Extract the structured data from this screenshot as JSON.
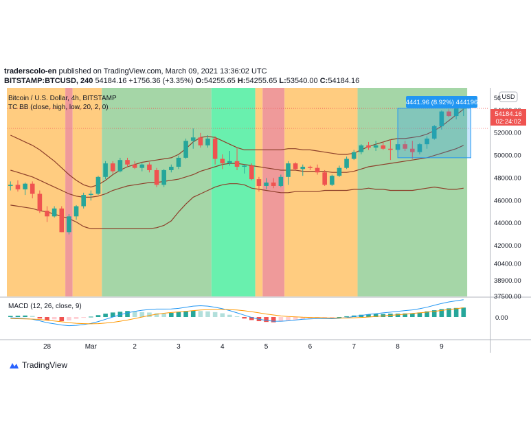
{
  "header": {
    "author": "traderscolo-en",
    "published_text": "published on TradingView.com, March 09, 2021 13:36:02 UTC",
    "symbol_line": "BITSTAMP:BTCUSD, 240",
    "last": "54184.16",
    "change": "+1756.36 (+3.35%)",
    "o_label": "O:",
    "o": "54255.65",
    "h_label": "H:",
    "h": "54255.65",
    "l_label": "L:",
    "l": "53540.00",
    "c_label": "C:",
    "c": "54184.16"
  },
  "legend": {
    "title": "Bitcoin / U.S. Dollar, 4h, BITSTAMP",
    "indicator": "TC BB (close, high, low, 20, 2, 0)",
    "macd": "MACD (12, 26, close, 9)"
  },
  "price_axis": {
    "currency": "USD",
    "ticks": [
      "54000.00",
      "52000.00",
      "50000.00",
      "48000.00",
      "46000.00",
      "44000.00",
      "42000.00",
      "40400.00",
      "38900.00",
      "37500.00"
    ],
    "top_partial": "56",
    "last_price": "54184.16",
    "countdown": "02:24:02",
    "macd_tick": "0.00"
  },
  "measure_label": "4441.96 (8.92%) 444196",
  "time_axis": [
    "28",
    "Mar",
    "2",
    "3",
    "4",
    "5",
    "6",
    "7",
    "8",
    "9"
  ],
  "branding": "TradingView",
  "colors": {
    "up": "#26a69a",
    "down": "#ef5350",
    "orange_zone": "#ffcc80",
    "green_zone": "#a5d6a7",
    "cyan_zone": "#69f0ae",
    "red_zone": "#ef9a9a",
    "bands": "#8d3f2a",
    "macd": "#2196f3",
    "signal": "#ff9800",
    "label_blue": "#2196f3",
    "label_red": "#ef5350"
  },
  "chart_data": {
    "type": "candlestick",
    "title": "Bitcoin / U.S. Dollar, 4h, BITSTAMP",
    "candles": [
      {
        "o": 47300,
        "h": 47700,
        "l": 46900,
        "c": 47400
      },
      {
        "o": 47400,
        "h": 47800,
        "l": 46800,
        "c": 47000
      },
      {
        "o": 47000,
        "h": 47600,
        "l": 46500,
        "c": 47500
      },
      {
        "o": 47500,
        "h": 47700,
        "l": 46200,
        "c": 46600
      },
      {
        "o": 46600,
        "h": 46900,
        "l": 44900,
        "c": 45100
      },
      {
        "o": 45100,
        "h": 45500,
        "l": 44100,
        "c": 44600
      },
      {
        "o": 44600,
        "h": 45500,
        "l": 44500,
        "c": 45300
      },
      {
        "o": 45300,
        "h": 45500,
        "l": 43200,
        "c": 43200
      },
      {
        "o": 43200,
        "h": 44800,
        "l": 43000,
        "c": 44600
      },
      {
        "o": 44600,
        "h": 45600,
        "l": 44300,
        "c": 45500
      },
      {
        "o": 45500,
        "h": 46700,
        "l": 45300,
        "c": 46500
      },
      {
        "o": 46500,
        "h": 46900,
        "l": 46000,
        "c": 46600
      },
      {
        "o": 46600,
        "h": 48200,
        "l": 46500,
        "c": 48100
      },
      {
        "o": 48100,
        "h": 49500,
        "l": 47900,
        "c": 49300
      },
      {
        "o": 49300,
        "h": 49500,
        "l": 48400,
        "c": 48600
      },
      {
        "o": 48600,
        "h": 49800,
        "l": 48500,
        "c": 49600
      },
      {
        "o": 49600,
        "h": 49800,
        "l": 49000,
        "c": 49200
      },
      {
        "o": 49200,
        "h": 49500,
        "l": 48800,
        "c": 48900
      },
      {
        "o": 48900,
        "h": 49300,
        "l": 48600,
        "c": 49200
      },
      {
        "o": 49200,
        "h": 49400,
        "l": 48500,
        "c": 48700
      },
      {
        "o": 48700,
        "h": 48900,
        "l": 47200,
        "c": 47400
      },
      {
        "o": 47400,
        "h": 48800,
        "l": 47200,
        "c": 48700
      },
      {
        "o": 48700,
        "h": 49200,
        "l": 48500,
        "c": 49000
      },
      {
        "o": 49000,
        "h": 50000,
        "l": 48800,
        "c": 49800
      },
      {
        "o": 49800,
        "h": 51500,
        "l": 49700,
        "c": 51300
      },
      {
        "o": 51300,
        "h": 52400,
        "l": 50600,
        "c": 51600
      },
      {
        "o": 51600,
        "h": 52000,
        "l": 50700,
        "c": 50900
      },
      {
        "o": 50900,
        "h": 51800,
        "l": 50700,
        "c": 51500
      },
      {
        "o": 51500,
        "h": 51700,
        "l": 49200,
        "c": 49700
      },
      {
        "o": 49700,
        "h": 50100,
        "l": 48800,
        "c": 49300
      },
      {
        "o": 49300,
        "h": 50400,
        "l": 49100,
        "c": 49500
      },
      {
        "o": 49500,
        "h": 50700,
        "l": 48700,
        "c": 49000
      },
      {
        "o": 49000,
        "h": 49200,
        "l": 48400,
        "c": 49100
      },
      {
        "o": 49100,
        "h": 49300,
        "l": 47800,
        "c": 47900
      },
      {
        "o": 47900,
        "h": 48100,
        "l": 46800,
        "c": 47300
      },
      {
        "o": 47300,
        "h": 48000,
        "l": 47000,
        "c": 47600
      },
      {
        "o": 47600,
        "h": 48000,
        "l": 47100,
        "c": 47300
      },
      {
        "o": 47300,
        "h": 48300,
        "l": 47200,
        "c": 48100
      },
      {
        "o": 48100,
        "h": 49500,
        "l": 47400,
        "c": 49300
      },
      {
        "o": 49300,
        "h": 49400,
        "l": 48700,
        "c": 48800
      },
      {
        "o": 48800,
        "h": 49200,
        "l": 48200,
        "c": 49000
      },
      {
        "o": 49000,
        "h": 49100,
        "l": 48700,
        "c": 48900
      },
      {
        "o": 48900,
        "h": 49200,
        "l": 48300,
        "c": 48500
      },
      {
        "o": 48500,
        "h": 48700,
        "l": 47300,
        "c": 47400
      },
      {
        "o": 47400,
        "h": 48300,
        "l": 47300,
        "c": 48200
      },
      {
        "o": 48200,
        "h": 49100,
        "l": 48100,
        "c": 48900
      },
      {
        "o": 48900,
        "h": 49900,
        "l": 48800,
        "c": 49700
      },
      {
        "o": 49700,
        "h": 50500,
        "l": 49600,
        "c": 50300
      },
      {
        "o": 50300,
        "h": 51000,
        "l": 50100,
        "c": 50900
      },
      {
        "o": 50900,
        "h": 51200,
        "l": 50500,
        "c": 50700
      },
      {
        "o": 50700,
        "h": 51300,
        "l": 50400,
        "c": 50900
      },
      {
        "o": 50900,
        "h": 51200,
        "l": 50500,
        "c": 50600
      },
      {
        "o": 50600,
        "h": 51400,
        "l": 49600,
        "c": 50500
      },
      {
        "o": 50500,
        "h": 51200,
        "l": 50300,
        "c": 51000
      },
      {
        "o": 51000,
        "h": 51300,
        "l": 50400,
        "c": 50600
      },
      {
        "o": 50600,
        "h": 51300,
        "l": 49700,
        "c": 50300
      },
      {
        "o": 50300,
        "h": 51100,
        "l": 50100,
        "c": 51000
      },
      {
        "o": 51000,
        "h": 51700,
        "l": 50600,
        "c": 51500
      },
      {
        "o": 51500,
        "h": 52700,
        "l": 51400,
        "c": 52600
      },
      {
        "o": 52600,
        "h": 54000,
        "l": 52300,
        "c": 53900
      },
      {
        "o": 53900,
        "h": 54100,
        "l": 53400,
        "c": 53500
      },
      {
        "o": 53500,
        "h": 54300,
        "l": 53200,
        "c": 54200
      },
      {
        "o": 54200,
        "h": 54300,
        "l": 53500,
        "c": 54200
      }
    ],
    "bb_upper": [
      51800,
      51500,
      51200,
      50900,
      50500,
      50000,
      49500,
      48900,
      48300,
      47800,
      47400,
      47200,
      47400,
      47800,
      48300,
      48700,
      49000,
      49200,
      49400,
      49500,
      49600,
      49700,
      49800,
      50100,
      50600,
      51200,
      51600,
      51700,
      51600,
      51300,
      51000,
      50700,
      50500,
      50500,
      50500,
      50500,
      50500,
      50500,
      50600,
      50600,
      50500,
      50500,
      50400,
      50300,
      50200,
      50100,
      50100,
      50200,
      50500,
      50800,
      51000,
      51200,
      51400,
      51500,
      51500,
      51600,
      51700,
      51900,
      52200,
      52600,
      53100,
      53600,
      54100
    ],
    "bb_middle": [
      48700,
      48500,
      48300,
      48100,
      47800,
      47500,
      47200,
      46900,
      46600,
      46400,
      46300,
      46300,
      46400,
      46600,
      46900,
      47100,
      47300,
      47400,
      47500,
      47600,
      47600,
      47700,
      47800,
      47900,
      48100,
      48300,
      48600,
      48800,
      49000,
      49200,
      49300,
      49300,
      49200,
      49100,
      49000,
      48900,
      48800,
      48700,
      48700,
      48700,
      48600,
      48600,
      48600,
      48600,
      48500,
      48500,
      48500,
      48600,
      48800,
      49000,
      49100,
      49200,
      49300,
      49400,
      49500,
      49600,
      49700,
      49800,
      50000,
      50200,
      50400,
      50600,
      50900
    ],
    "bb_lower": [
      45600,
      45500,
      45400,
      45300,
      45100,
      45000,
      44800,
      44600,
      44400,
      44100,
      43700,
      43500,
      43500,
      43500,
      43500,
      43500,
      43500,
      43500,
      43500,
      43500,
      43600,
      43800,
      44200,
      45000,
      45700,
      46300,
      46600,
      46900,
      47200,
      47400,
      47500,
      47500,
      47400,
      47100,
      47000,
      46900,
      46800,
      46700,
      46700,
      46800,
      46800,
      46800,
      46800,
      46900,
      46900,
      46900,
      46900,
      47000,
      47000,
      47100,
      47000,
      47000,
      46900,
      46900,
      46900,
      46900,
      47000,
      47100,
      47200,
      47100,
      47000,
      47000,
      47100
    ],
    "zones": [
      {
        "from": 0,
        "to": 8,
        "color": "orange_zone"
      },
      {
        "from": 8,
        "to": 9,
        "color": "red_zone"
      },
      {
        "from": 9,
        "to": 13,
        "color": "orange_zone"
      },
      {
        "from": 13,
        "to": 28,
        "color": "green_zone"
      },
      {
        "from": 28,
        "to": 34,
        "color": "cyan_zone"
      },
      {
        "from": 34,
        "to": 35,
        "color": "orange_zone"
      },
      {
        "from": 35,
        "to": 38,
        "color": "red_zone"
      },
      {
        "from": 38,
        "to": 48,
        "color": "orange_zone"
      },
      {
        "from": 48,
        "to": 63,
        "color": "green_zone"
      }
    ],
    "macd_hist": [
      30,
      35,
      40,
      30,
      -40,
      -80,
      -60,
      -110,
      -90,
      -50,
      -20,
      10,
      50,
      90,
      120,
      140,
      160,
      150,
      130,
      120,
      100,
      90,
      110,
      140,
      160,
      170,
      160,
      150,
      130,
      100,
      60,
      20,
      -40,
      -80,
      -110,
      -130,
      -140,
      -120,
      -90,
      -70,
      -50,
      -40,
      -30,
      -20,
      -10,
      0,
      20,
      40,
      60,
      70,
      80,
      80,
      90,
      90,
      95,
      100,
      120,
      150,
      180,
      210,
      230,
      240,
      250
    ],
    "macd_line": [
      -20,
      -30,
      -40,
      -60,
      -100,
      -150,
      -180,
      -210,
      -230,
      -220,
      -200,
      -170,
      -120,
      -60,
      0,
      60,
      110,
      150,
      180,
      200,
      210,
      210,
      215,
      230,
      260,
      290,
      300,
      290,
      260,
      220,
      170,
      110,
      50,
      -10,
      -60,
      -90,
      -110,
      -110,
      -100,
      -80,
      -60,
      -50,
      -40,
      -40,
      -45,
      -35,
      -15,
      10,
      40,
      70,
      90,
      110,
      130,
      150,
      170,
      190,
      220,
      260,
      310,
      360,
      400,
      430,
      460
    ],
    "signal_line": [
      -40,
      -45,
      -50,
      -55,
      -65,
      -85,
      -105,
      -125,
      -150,
      -165,
      -175,
      -180,
      -175,
      -160,
      -140,
      -110,
      -80,
      -40,
      0,
      40,
      75,
      100,
      120,
      135,
      150,
      170,
      185,
      195,
      200,
      200,
      195,
      185,
      165,
      140,
      110,
      80,
      55,
      30,
      15,
      5,
      -5,
      -10,
      -15,
      -20,
      -25,
      -25,
      -25,
      -20,
      -10,
      0,
      15,
      30,
      45,
      60,
      75,
      95,
      110,
      130,
      150,
      175,
      200,
      220,
      245
    ],
    "bb_y_range": [
      37500,
      56000
    ],
    "measure": {
      "from_candle": 53,
      "to_candle": 62,
      "low": 49800,
      "high": 54200,
      "label": "4441.96 (8.92%) 444196"
    },
    "x_ticks": [
      {
        "label": "28",
        "at": 5
      },
      {
        "label": "Mar",
        "at": 11
      },
      {
        "label": "2",
        "at": 17
      },
      {
        "label": "3",
        "at": 23
      },
      {
        "label": "4",
        "at": 29
      },
      {
        "label": "5",
        "at": 35
      },
      {
        "label": "6",
        "at": 41
      },
      {
        "label": "7",
        "at": 47
      },
      {
        "label": "8",
        "at": 53
      },
      {
        "label": "9",
        "at": 59
      }
    ]
  }
}
